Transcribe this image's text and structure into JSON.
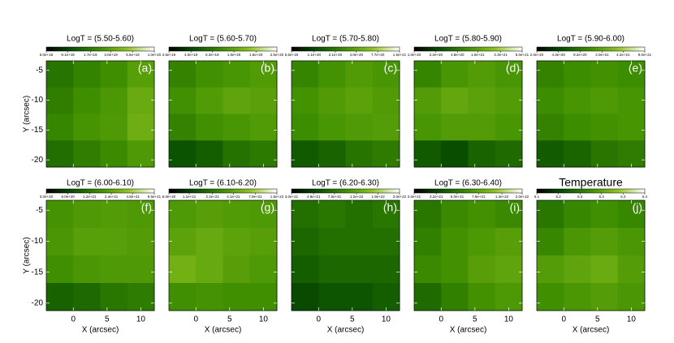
{
  "chart_data": [
    {
      "type": "heatmap",
      "title": "LogT = (5.50-5.60)",
      "panel_label": "(a)",
      "ylabel": "Y (arcsec)",
      "show_xtick_labels": false,
      "show_ytick_labels": true,
      "xlim": [
        -4,
        12
      ],
      "ylim": [
        -21.2,
        -3.4
      ],
      "xticks": [
        0,
        5,
        10
      ],
      "yticks": [
        -5,
        -10,
        -15,
        -20
      ],
      "clim": [
        5e+18,
        1e+20
      ],
      "log_color": true,
      "colormap": [
        "#000000",
        "#0a5200",
        "#3f8f00",
        "#8fc31f",
        "#ffffff"
      ],
      "cticks": [
        {
          "value": 5e+18,
          "label": "5.0e+18"
        },
        {
          "value": 9.1e+18,
          "label": "9.1e+18"
        },
        {
          "value": 1.7e+19,
          "label": "1.7e+19"
        },
        {
          "value": 3e+19,
          "label": "3.0e+19"
        },
        {
          "value": 5.5e+19,
          "label": "5.5e+19"
        },
        {
          "value": 1e+20,
          "label": "1.0e+20"
        }
      ],
      "z": [
        [
          1.6e+19,
          1.9e+19,
          2.2e+19,
          2.8e+19
        ],
        [
          1.8e+19,
          2.2e+19,
          2.5e+19,
          3.3e+19
        ],
        [
          2e+19,
          2.4e+19,
          2.6e+19,
          3.5e+19
        ],
        [
          1.5e+19,
          1.8e+19,
          2.1e+19,
          2.6e+19
        ]
      ]
    },
    {
      "type": "heatmap",
      "title": "LogT = (5.60-5.70)",
      "panel_label": "(b)",
      "show_xtick_labels": false,
      "show_ytick_labels": false,
      "xlim": [
        -4,
        12
      ],
      "ylim": [
        -21.2,
        -3.4
      ],
      "xticks": [
        0,
        5,
        10
      ],
      "yticks": [
        -5,
        -10,
        -15,
        -20
      ],
      "clim": [
        2.5e+19,
        2.5e+20
      ],
      "log_color": true,
      "colormap": [
        "#000000",
        "#0a5200",
        "#3f8f00",
        "#8fc31f",
        "#ffffff"
      ],
      "cticks": [
        {
          "value": 2.5e+19,
          "label": "2.5e+19"
        },
        {
          "value": 4e+19,
          "label": "4.0e+19"
        },
        {
          "value": 6.3e+19,
          "label": "6.3e+19"
        },
        {
          "value": 1e+20,
          "label": "1.0e+20"
        },
        {
          "value": 1.6e+20,
          "label": "1.6e+20"
        },
        {
          "value": 2.5e+20,
          "label": "2.5e+20"
        }
      ],
      "z": [
        [
          7e+19,
          8e+19,
          8.5e+19,
          9e+19
        ],
        [
          8e+19,
          9e+19,
          1e+20,
          9.5e+19
        ],
        [
          7e+19,
          8e+19,
          8.5e+19,
          9e+19
        ],
        [
          4.5e+19,
          5e+19,
          6e+19,
          6.5e+19
        ]
      ]
    },
    {
      "type": "heatmap",
      "title": "LogT = (5.70-5.80)",
      "panel_label": "(c)",
      "show_xtick_labels": false,
      "show_ytick_labels": false,
      "xlim": [
        -4,
        12
      ],
      "ylim": [
        -21.2,
        -3.4
      ],
      "xticks": [
        0,
        5,
        10
      ],
      "yticks": [
        -5,
        -10,
        -15,
        -20
      ],
      "clim": [
        5.5e+19,
        1.5e+21
      ],
      "log_color": true,
      "colormap": [
        "#000000",
        "#0a5200",
        "#3f8f00",
        "#8fc31f",
        "#ffffff"
      ],
      "cticks": [
        {
          "value": 5.5e+19,
          "label": "5.5e+19"
        },
        {
          "value": 1.1e+20,
          "label": "1.1e+20"
        },
        {
          "value": 2.1e+20,
          "label": "2.1e+20"
        },
        {
          "value": 4e+20,
          "label": "4.0e+20"
        },
        {
          "value": 7.7e+20,
          "label": "7.7e+20"
        },
        {
          "value": 1.5e+21,
          "label": "1.5e+21"
        }
      ],
      "z": [
        [
          2.5e+20,
          3e+20,
          3.5e+20,
          3.2e+20
        ],
        [
          3e+20,
          3.5e+20,
          3.8e+20,
          3.5e+20
        ],
        [
          2.8e+20,
          3.2e+20,
          3.4e+20,
          3.6e+20
        ],
        [
          1.4e+20,
          1.6e+20,
          2e+20,
          2.2e+20
        ]
      ]
    },
    {
      "type": "heatmap",
      "title": "LogT = (5.80-5.90)",
      "panel_label": "(d)",
      "show_xtick_labels": false,
      "show_ytick_labels": false,
      "xlim": [
        -4,
        12
      ],
      "ylim": [
        -21.2,
        -3.4
      ],
      "xticks": [
        0,
        5,
        10
      ],
      "yticks": [
        -5,
        -10,
        -15,
        -20
      ],
      "clim": [
        1e+20,
        5e+21
      ],
      "log_color": true,
      "colormap": [
        "#000000",
        "#0a5200",
        "#3f8f00",
        "#8fc31f",
        "#ffffff"
      ],
      "cticks": [
        {
          "value": 1e+20,
          "label": "1.0e+20"
        },
        {
          "value": 2.2e+20,
          "label": "2.2e+20"
        },
        {
          "value": 4.8e+20,
          "label": "4.8e+20"
        },
        {
          "value": 1e+21,
          "label": "1.0e+21"
        },
        {
          "value": 2.3e+21,
          "label": "2.3e+21"
        },
        {
          "value": 5e+21,
          "label": "5.0e+21"
        }
      ],
      "z": [
        [
          6e+20,
          8e+20,
          9e+20,
          8e+20
        ],
        [
          9e+20,
          1.1e+21,
          1e+21,
          9e+20
        ],
        [
          8e+20,
          9e+20,
          9e+20,
          8e+20
        ],
        [
          3e+20,
          2.5e+20,
          3.5e+20,
          4e+20
        ]
      ]
    },
    {
      "type": "heatmap",
      "title": "LogT = (5.90-6.00)",
      "panel_label": "(e)",
      "show_xtick_labels": false,
      "show_ytick_labels": false,
      "xlim": [
        -4,
        12
      ],
      "ylim": [
        -21.2,
        -3.4
      ],
      "xticks": [
        0,
        5,
        10
      ],
      "yticks": [
        -5,
        -10,
        -15,
        -20
      ],
      "clim": [
        2e+20,
        9e+21
      ],
      "log_color": true,
      "colormap": [
        "#000000",
        "#0a5200",
        "#3f8f00",
        "#8fc31f",
        "#ffffff"
      ],
      "cticks": [
        {
          "value": 2e+20,
          "label": "2.0e+20"
        },
        {
          "value": 4.3e+20,
          "label": "4.3e+20"
        },
        {
          "value": 9.2e+20,
          "label": "9.2e+20"
        },
        {
          "value": 2e+21,
          "label": "2.0e+21"
        },
        {
          "value": 4.2e+21,
          "label": "4.2e+21"
        },
        {
          "value": 9e+21,
          "label": "9.0e+21"
        }
      ],
      "z": [
        [
          1.1e+21,
          1.3e+21,
          1.4e+21,
          1.3e+21
        ],
        [
          1.3e+21,
          1.5e+21,
          1.6e+21,
          1.5e+21
        ],
        [
          1.1e+21,
          1.3e+21,
          1.4e+21,
          1.5e+21
        ],
        [
          6e+20,
          7e+20,
          9e+20,
          1e+21
        ]
      ]
    },
    {
      "type": "heatmap",
      "title": "LogT = (6.00-6.10)",
      "panel_label": "(f)",
      "ylabel": "Y (arcsec)",
      "xlabel": "X (arcsec)",
      "show_xtick_labels": true,
      "show_ytick_labels": true,
      "xlim": [
        -4,
        12
      ],
      "ylim": [
        -21.2,
        -3.4
      ],
      "xticks": [
        0,
        5,
        10
      ],
      "yticks": [
        -5,
        -10,
        -15,
        -20
      ],
      "clim": [
        3e+20,
        9.5e+21
      ],
      "log_color": true,
      "colormap": [
        "#000000",
        "#0a5200",
        "#3f8f00",
        "#8fc31f",
        "#ffffff"
      ],
      "cticks": [
        {
          "value": 3e+20,
          "label": "3.0e+20"
        },
        {
          "value": 6e+20,
          "label": "6.0e+20"
        },
        {
          "value": 1.2e+21,
          "label": "1.2e+21"
        },
        {
          "value": 2.4e+21,
          "label": "2.4e+21"
        },
        {
          "value": 4.8e+21,
          "label": "4.8e+21"
        },
        {
          "value": 9.5e+21,
          "label": "9.5e+21"
        }
      ],
      "z": [
        [
          1.8e+21,
          2e+21,
          2.1e+21,
          2e+21
        ],
        [
          1.9e+21,
          2.2e+21,
          2.2e+21,
          2.1e+21
        ],
        [
          1.7e+21,
          1.9e+21,
          2e+21,
          2e+21
        ],
        [
          9e+20,
          1e+21,
          1.2e+21,
          1.3e+21
        ]
      ]
    },
    {
      "type": "heatmap",
      "title": "LogT = (6.10-6.20)",
      "panel_label": "(g)",
      "xlabel": "X (arcsec)",
      "show_xtick_labels": true,
      "show_ytick_labels": false,
      "xlim": [
        -4,
        12
      ],
      "ylim": [
        -21.2,
        -3.4
      ],
      "xticks": [
        0,
        5,
        10
      ],
      "yticks": [
        -5,
        -10,
        -15,
        -20
      ],
      "clim": [
        6e+20,
        1.5e+22
      ],
      "log_color": true,
      "colormap": [
        "#000000",
        "#0a5200",
        "#3f8f00",
        "#8fc31f",
        "#ffffff"
      ],
      "cticks": [
        {
          "value": 6e+20,
          "label": "6.0e+20"
        },
        {
          "value": 1.1e+21,
          "label": "1.1e+21"
        },
        {
          "value": 2.2e+21,
          "label": "2.2e+21"
        },
        {
          "value": 4.1e+21,
          "label": "4.1e+21"
        },
        {
          "value": 7.9e+21,
          "label": "7.9e+21"
        },
        {
          "value": 1.5e+22,
          "label": "1.5e+22"
        }
      ],
      "z": [
        [
          3.5e+21,
          3.8e+21,
          3.6e+21,
          3.5e+21
        ],
        [
          4e+21,
          4.5e+21,
          4e+21,
          3.8e+21
        ],
        [
          5e+21,
          4.5e+21,
          3.8e+21,
          3.5e+21
        ],
        [
          3e+21,
          3.2e+21,
          3e+21,
          3e+21
        ]
      ]
    },
    {
      "type": "heatmap",
      "title": "LogT = (6.20-6.30)",
      "panel_label": "(h)",
      "xlabel": "X (arcsec)",
      "show_xtick_labels": true,
      "show_ytick_labels": false,
      "xlim": [
        -4,
        12
      ],
      "ylim": [
        -21.2,
        -3.4
      ],
      "xticks": [
        0,
        5,
        10
      ],
      "yticks": [
        -5,
        -10,
        -15,
        -20
      ],
      "clim": [
        3e+21,
        3e+22
      ],
      "log_color": true,
      "colormap": [
        "#000000",
        "#0a5200",
        "#3f8f00",
        "#8fc31f",
        "#ffffff"
      ],
      "cticks": [
        {
          "value": 3e+21,
          "label": "3.0e+21"
        },
        {
          "value": 4.8e+21,
          "label": "4.8e+21"
        },
        {
          "value": 7.5e+21,
          "label": "7.5e+21"
        },
        {
          "value": 1.2e+22,
          "label": "1.2e+22"
        },
        {
          "value": 1.9e+22,
          "label": "1.9e+22"
        },
        {
          "value": 3e+22,
          "label": "3.0e+22"
        }
      ],
      "z": [
        [
          7e+21,
          7.5e+21,
          7e+21,
          7.5e+21
        ],
        [
          6.5e+21,
          7e+21,
          7e+21,
          7e+21
        ],
        [
          6e+21,
          6.5e+21,
          6.5e+21,
          6.5e+21
        ],
        [
          5e+21,
          5.5e+21,
          5.5e+21,
          6e+21
        ]
      ]
    },
    {
      "type": "heatmap",
      "title": "LogT = (6.30-6.40)",
      "panel_label": "(i)",
      "xlabel": "X (arcsec)",
      "show_xtick_labels": true,
      "show_ytick_labels": false,
      "xlim": [
        -4,
        12
      ],
      "ylim": [
        -21.2,
        -3.4
      ],
      "xticks": [
        0,
        5,
        10
      ],
      "yticks": [
        -5,
        -10,
        -15,
        -20
      ],
      "clim": [
        2e+21,
        2e+22
      ],
      "log_color": true,
      "colormap": [
        "#000000",
        "#0a5200",
        "#3f8f00",
        "#8fc31f",
        "#ffffff"
      ],
      "cticks": [
        {
          "value": 2e+21,
          "label": "2.0e+21"
        },
        {
          "value": 3.2e+21,
          "label": "3.2e+21"
        },
        {
          "value": 5e+21,
          "label": "5.0e+21"
        },
        {
          "value": 7.9e+21,
          "label": "7.9e+21"
        },
        {
          "value": 1.3e+22,
          "label": "1.3e+22"
        },
        {
          "value": 2e+22,
          "label": "2.0e+22"
        }
      ],
      "z": [
        [
          5e+21,
          6e+21,
          6.5e+21,
          6e+21
        ],
        [
          5.5e+21,
          6.5e+21,
          7e+21,
          7.5e+21
        ],
        [
          6e+21,
          6.5e+21,
          7.5e+21,
          8e+21
        ],
        [
          4.5e+21,
          5.5e+21,
          6.5e+21,
          7e+21
        ]
      ]
    },
    {
      "type": "heatmap",
      "title": "Temperature",
      "title_size": "large",
      "panel_label": "(j)",
      "xlabel": "X (arcsec)",
      "show_xtick_labels": true,
      "show_ytick_labels": false,
      "xlim": [
        -4,
        12
      ],
      "ylim": [
        -21.2,
        -3.4
      ],
      "xticks": [
        0,
        5,
        10
      ],
      "yticks": [
        -5,
        -10,
        -15,
        -20
      ],
      "clim": [
        6.1,
        6.4
      ],
      "log_color": false,
      "colormap": [
        "#000000",
        "#0a5200",
        "#3f8f00",
        "#8fc31f",
        "#ffffff"
      ],
      "cticks": [
        6.1,
        {
          "value": 6.16,
          "label": "6.2"
        },
        {
          "value": 6.22,
          "label": "6.2"
        },
        {
          "value": 6.28,
          "label": "6.3"
        },
        {
          "value": 6.34,
          "label": "6.3"
        },
        6.4
      ],
      "z": [
        [
          6.22,
          6.24,
          6.25,
          6.24
        ],
        [
          6.24,
          6.26,
          6.27,
          6.26
        ],
        [
          6.27,
          6.28,
          6.29,
          6.27
        ],
        [
          6.25,
          6.26,
          6.27,
          6.26
        ]
      ]
    }
  ]
}
